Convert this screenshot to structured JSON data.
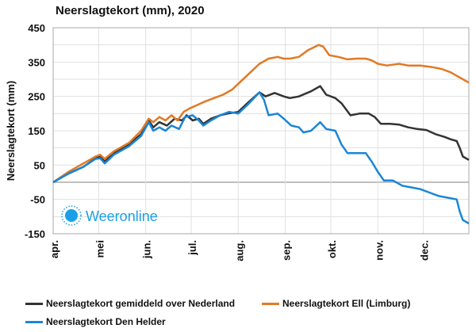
{
  "chart_data": {
    "type": "line",
    "title": "Neerslagtekort (mm), 2020",
    "ylabel": "Neerslagtekort  (mm)",
    "xlabel": "",
    "ylim": [
      -150,
      450
    ],
    "yticks": [
      450,
      350,
      250,
      150,
      50,
      -50,
      -150
    ],
    "xlim_days": [
      0,
      274
    ],
    "xticks": [
      {
        "day": 0,
        "label": "apr."
      },
      {
        "day": 30,
        "label": "mei"
      },
      {
        "day": 61,
        "label": "jun."
      },
      {
        "day": 91,
        "label": "jul."
      },
      {
        "day": 122,
        "label": "aug."
      },
      {
        "day": 153,
        "label": "sep."
      },
      {
        "day": 183,
        "label": "okt."
      },
      {
        "day": 214,
        "label": "nov."
      },
      {
        "day": 244,
        "label": "dec."
      }
    ],
    "grid": true,
    "legend_placement": "bottom",
    "series": [
      {
        "name": "Neerslagtekort gemiddeld over Nederland",
        "color": "#333333",
        "points": [
          [
            0,
            0
          ],
          [
            10,
            25
          ],
          [
            20,
            45
          ],
          [
            28,
            70
          ],
          [
            31,
            75
          ],
          [
            34,
            60
          ],
          [
            40,
            85
          ],
          [
            50,
            110
          ],
          [
            58,
            140
          ],
          [
            63,
            180
          ],
          [
            66,
            160
          ],
          [
            70,
            175
          ],
          [
            75,
            165
          ],
          [
            80,
            185
          ],
          [
            85,
            180
          ],
          [
            88,
            195
          ],
          [
            92,
            180
          ],
          [
            96,
            185
          ],
          [
            99,
            170
          ],
          [
            104,
            185
          ],
          [
            110,
            195
          ],
          [
            115,
            200
          ],
          [
            122,
            205
          ],
          [
            128,
            230
          ],
          [
            136,
            262
          ],
          [
            140,
            250
          ],
          [
            146,
            260
          ],
          [
            152,
            250
          ],
          [
            156,
            245
          ],
          [
            162,
            250
          ],
          [
            170,
            265
          ],
          [
            176,
            280
          ],
          [
            180,
            255
          ],
          [
            186,
            245
          ],
          [
            190,
            230
          ],
          [
            196,
            195
          ],
          [
            202,
            200
          ],
          [
            208,
            200
          ],
          [
            212,
            190
          ],
          [
            216,
            170
          ],
          [
            222,
            170
          ],
          [
            228,
            168
          ],
          [
            234,
            160
          ],
          [
            240,
            155
          ],
          [
            246,
            152
          ],
          [
            252,
            140
          ],
          [
            258,
            132
          ],
          [
            262,
            125
          ],
          [
            266,
            120
          ],
          [
            268,
            100
          ],
          [
            270,
            75
          ],
          [
            274,
            65
          ]
        ]
      },
      {
        "name": "Neerslagtekort Ell (Limburg)",
        "color": "#e07a25",
        "points": [
          [
            0,
            0
          ],
          [
            10,
            30
          ],
          [
            20,
            55
          ],
          [
            28,
            75
          ],
          [
            31,
            80
          ],
          [
            34,
            68
          ],
          [
            40,
            90
          ],
          [
            50,
            115
          ],
          [
            58,
            150
          ],
          [
            63,
            185
          ],
          [
            66,
            175
          ],
          [
            70,
            190
          ],
          [
            74,
            180
          ],
          [
            78,
            195
          ],
          [
            82,
            180
          ],
          [
            86,
            205
          ],
          [
            90,
            215
          ],
          [
            95,
            225
          ],
          [
            100,
            235
          ],
          [
            106,
            245
          ],
          [
            112,
            255
          ],
          [
            118,
            270
          ],
          [
            124,
            295
          ],
          [
            130,
            320
          ],
          [
            136,
            345
          ],
          [
            142,
            360
          ],
          [
            148,
            365
          ],
          [
            152,
            360
          ],
          [
            156,
            360
          ],
          [
            162,
            365
          ],
          [
            168,
            385
          ],
          [
            175,
            400
          ],
          [
            178,
            395
          ],
          [
            182,
            370
          ],
          [
            188,
            365
          ],
          [
            194,
            358
          ],
          [
            200,
            360
          ],
          [
            206,
            360
          ],
          [
            210,
            355
          ],
          [
            214,
            345
          ],
          [
            220,
            340
          ],
          [
            228,
            345
          ],
          [
            234,
            340
          ],
          [
            242,
            340
          ],
          [
            250,
            335
          ],
          [
            256,
            330
          ],
          [
            262,
            320
          ],
          [
            266,
            310
          ],
          [
            270,
            300
          ],
          [
            274,
            290
          ]
        ]
      },
      {
        "name": "Neerslagtekort Den Helder",
        "color": "#1a86d6",
        "points": [
          [
            0,
            0
          ],
          [
            10,
            25
          ],
          [
            20,
            45
          ],
          [
            28,
            68
          ],
          [
            31,
            70
          ],
          [
            34,
            55
          ],
          [
            40,
            80
          ],
          [
            50,
            105
          ],
          [
            58,
            135
          ],
          [
            63,
            175
          ],
          [
            66,
            150
          ],
          [
            70,
            160
          ],
          [
            74,
            150
          ],
          [
            78,
            165
          ],
          [
            83,
            155
          ],
          [
            87,
            190
          ],
          [
            92,
            195
          ],
          [
            96,
            180
          ],
          [
            99,
            165
          ],
          [
            104,
            180
          ],
          [
            110,
            195
          ],
          [
            116,
            205
          ],
          [
            122,
            200
          ],
          [
            128,
            225
          ],
          [
            136,
            262
          ],
          [
            139,
            240
          ],
          [
            142,
            195
          ],
          [
            148,
            200
          ],
          [
            152,
            185
          ],
          [
            157,
            165
          ],
          [
            162,
            160
          ],
          [
            165,
            145
          ],
          [
            170,
            150
          ],
          [
            176,
            175
          ],
          [
            180,
            155
          ],
          [
            186,
            150
          ],
          [
            190,
            110
          ],
          [
            194,
            85
          ],
          [
            200,
            85
          ],
          [
            206,
            85
          ],
          [
            210,
            60
          ],
          [
            214,
            30
          ],
          [
            218,
            5
          ],
          [
            224,
            5
          ],
          [
            230,
            -10
          ],
          [
            236,
            -15
          ],
          [
            242,
            -20
          ],
          [
            248,
            -30
          ],
          [
            254,
            -40
          ],
          [
            260,
            -45
          ],
          [
            266,
            -50
          ],
          [
            268,
            -85
          ],
          [
            270,
            -110
          ],
          [
            274,
            -120
          ]
        ]
      }
    ]
  },
  "logo": {
    "text": "Weeronline"
  }
}
